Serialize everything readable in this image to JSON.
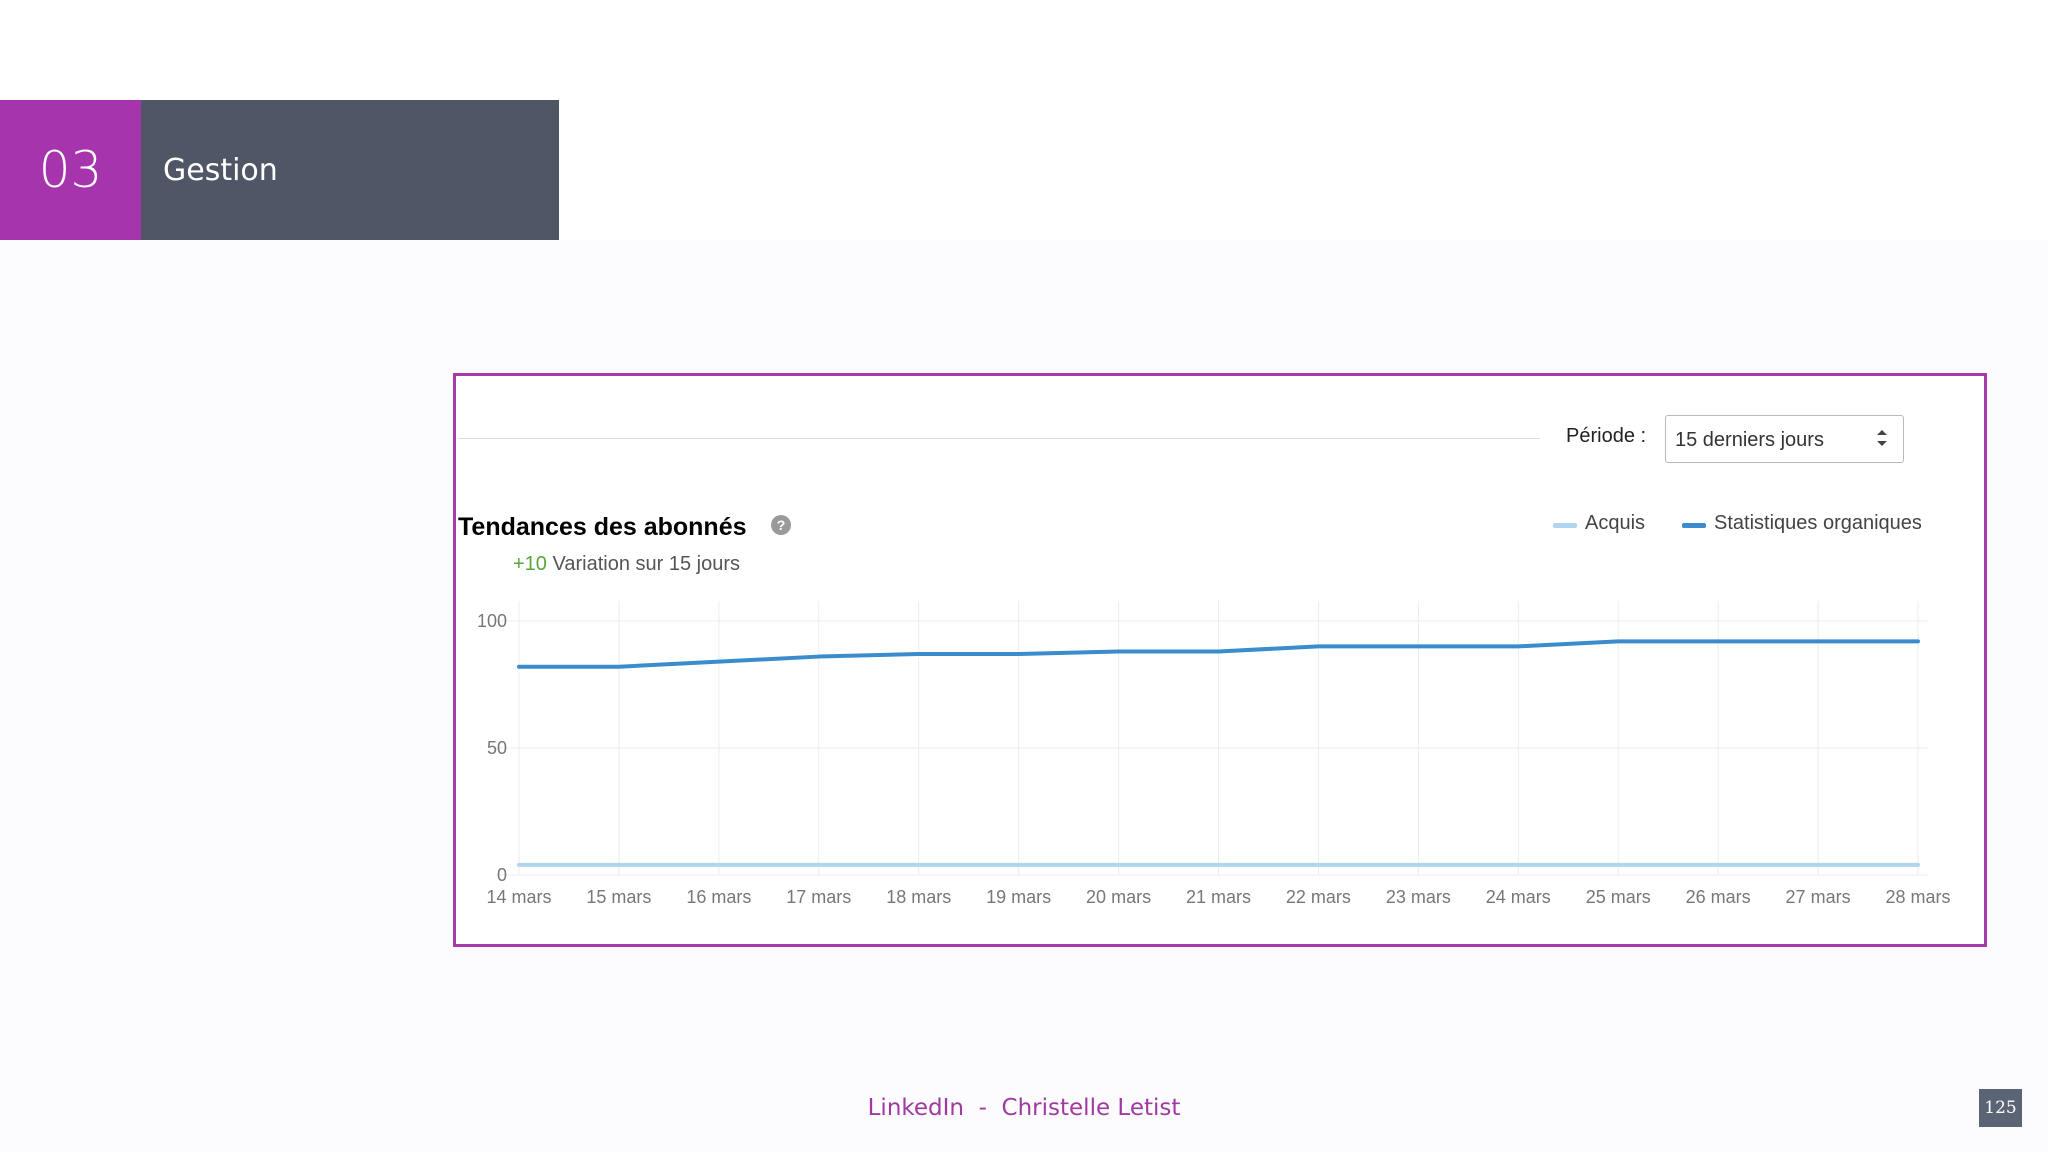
{
  "section": {
    "number": "03",
    "title": "Gestion"
  },
  "period": {
    "label": "Période :",
    "value": "15 derniers jours"
  },
  "chart": {
    "title": "Tendances des abonnés",
    "variation_delta": "+10",
    "variation_text": "Variation sur 15 jours",
    "legend": [
      "Acquis",
      "Statistiques organiques"
    ]
  },
  "chart_data": {
    "type": "line",
    "title": "Tendances des abonnés",
    "categories": [
      "14 mars",
      "15 mars",
      "16 mars",
      "17 mars",
      "18 mars",
      "19 mars",
      "20 mars",
      "21 mars",
      "22 mars",
      "23 mars",
      "24 mars",
      "25 mars",
      "26 mars",
      "27 mars",
      "28 mars"
    ],
    "series": [
      {
        "name": "Acquis",
        "color": "#b0d5f0",
        "values": [
          4,
          4,
          4,
          4,
          4,
          4,
          4,
          4,
          4,
          4,
          4,
          4,
          4,
          4,
          4
        ]
      },
      {
        "name": "Statistiques organiques",
        "color": "#3a8ccd",
        "values": [
          82,
          82,
          84,
          86,
          87,
          87,
          88,
          88,
          90,
          90,
          90,
          92,
          92,
          92,
          92
        ]
      }
    ],
    "yticks": [
      0,
      50,
      100
    ],
    "ylim": [
      0,
      100
    ],
    "grid": true,
    "legend_position": "top-right"
  },
  "footer": {
    "text": "LinkedIn  -  Christelle Letist",
    "page": "125"
  }
}
